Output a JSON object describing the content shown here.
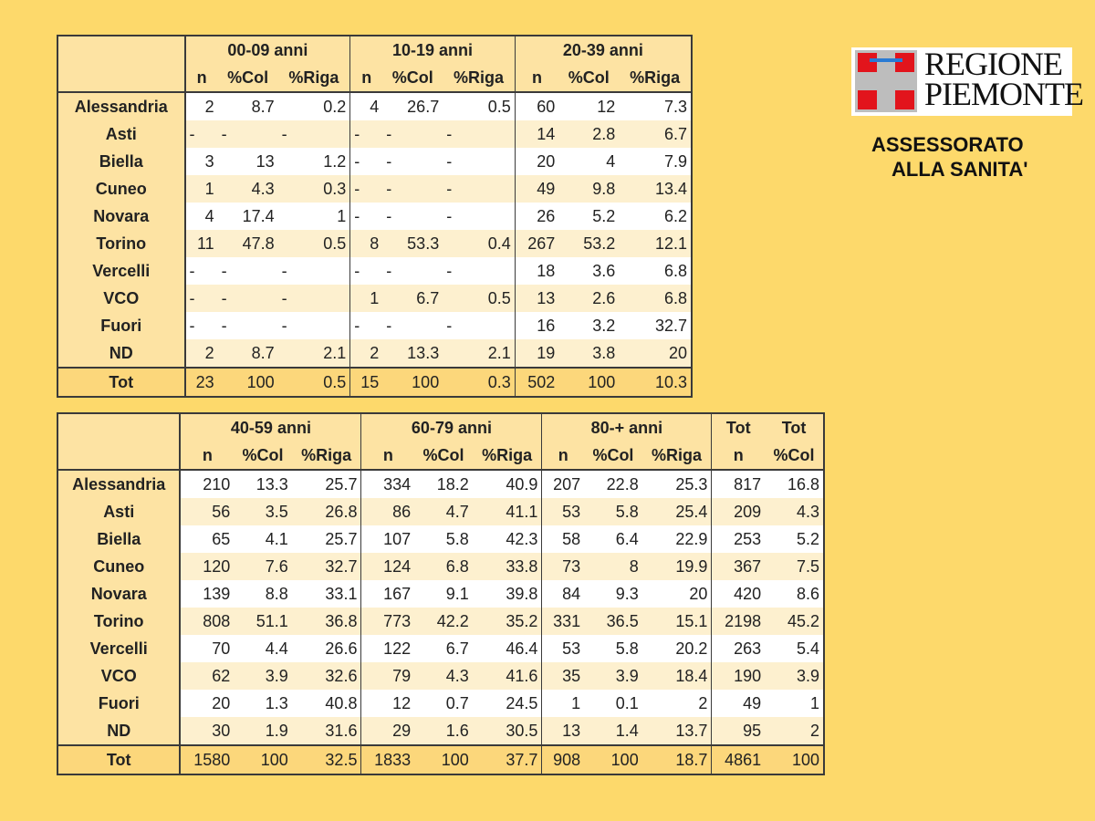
{
  "logo": {
    "line1": "REGIONE",
    "line2": "PIEMONTE"
  },
  "department": {
    "line1": "ASSESSORATO",
    "line2": "ALLA SANITA'"
  },
  "tables": [
    {
      "groups": [
        {
          "labels": [
            "00-09 anni"
          ],
          "cols": [
            "n",
            "%Col",
            "%Riga"
          ]
        },
        {
          "labels": [
            "10-19 anni"
          ],
          "cols": [
            "n",
            "%Col",
            "%Riga"
          ]
        },
        {
          "labels": [
            "20-39 anni"
          ],
          "cols": [
            "n",
            "%Col",
            "%Riga"
          ]
        }
      ],
      "rows": [
        {
          "label": "Alessandria",
          "cells": [
            "2",
            "8.7",
            "0.2",
            "4",
            "26.7",
            "0.5",
            "60",
            "12",
            "7.3"
          ]
        },
        {
          "label": "Asti",
          "cells": [
            "-",
            "-",
            "-",
            "-",
            "-",
            "-",
            "14",
            "2.8",
            "6.7"
          ]
        },
        {
          "label": "Biella",
          "cells": [
            "3",
            "13",
            "1.2",
            "-",
            "-",
            "-",
            "20",
            "4",
            "7.9"
          ]
        },
        {
          "label": "Cuneo",
          "cells": [
            "1",
            "4.3",
            "0.3",
            "-",
            "-",
            "-",
            "49",
            "9.8",
            "13.4"
          ]
        },
        {
          "label": "Novara",
          "cells": [
            "4",
            "17.4",
            "1",
            "-",
            "-",
            "-",
            "26",
            "5.2",
            "6.2"
          ]
        },
        {
          "label": "Torino",
          "cells": [
            "11",
            "47.8",
            "0.5",
            "8",
            "53.3",
            "0.4",
            "267",
            "53.2",
            "12.1"
          ]
        },
        {
          "label": "Vercelli",
          "cells": [
            "-",
            "-",
            "-",
            "-",
            "-",
            "-",
            "18",
            "3.6",
            "6.8"
          ]
        },
        {
          "label": "VCO",
          "cells": [
            "-",
            "-",
            "-",
            "1",
            "6.7",
            "0.5",
            "13",
            "2.6",
            "6.8"
          ]
        },
        {
          "label": "Fuori",
          "cells": [
            "-",
            "-",
            "-",
            "-",
            "-",
            "-",
            "16",
            "3.2",
            "32.7"
          ]
        },
        {
          "label": "ND",
          "cells": [
            "2",
            "8.7",
            "2.1",
            "2",
            "13.3",
            "2.1",
            "19",
            "3.8",
            "20"
          ]
        }
      ],
      "total": {
        "label": "Tot",
        "cells": [
          "23",
          "100",
          "0.5",
          "15",
          "100",
          "0.3",
          "502",
          "100",
          "10.3"
        ]
      }
    },
    {
      "groups": [
        {
          "labels": [
            "40-59 anni"
          ],
          "cols": [
            "n",
            "%Col",
            "%Riga"
          ]
        },
        {
          "labels": [
            "60-79 anni"
          ],
          "cols": [
            "n",
            "%Col",
            "%Riga"
          ]
        },
        {
          "labels": [
            "80-+ anni"
          ],
          "cols": [
            "n",
            "%Col",
            "%Riga"
          ]
        },
        {
          "labels": [
            "Tot",
            "Tot"
          ],
          "cols": [
            "n",
            "%Col"
          ]
        }
      ],
      "rows": [
        {
          "label": "Alessandria",
          "cells": [
            "210",
            "13.3",
            "25.7",
            "334",
            "18.2",
            "40.9",
            "207",
            "22.8",
            "25.3",
            "817",
            "16.8"
          ]
        },
        {
          "label": "Asti",
          "cells": [
            "56",
            "3.5",
            "26.8",
            "86",
            "4.7",
            "41.1",
            "53",
            "5.8",
            "25.4",
            "209",
            "4.3"
          ]
        },
        {
          "label": "Biella",
          "cells": [
            "65",
            "4.1",
            "25.7",
            "107",
            "5.8",
            "42.3",
            "58",
            "6.4",
            "22.9",
            "253",
            "5.2"
          ]
        },
        {
          "label": "Cuneo",
          "cells": [
            "120",
            "7.6",
            "32.7",
            "124",
            "6.8",
            "33.8",
            "73",
            "8",
            "19.9",
            "367",
            "7.5"
          ]
        },
        {
          "label": "Novara",
          "cells": [
            "139",
            "8.8",
            "33.1",
            "167",
            "9.1",
            "39.8",
            "84",
            "9.3",
            "20",
            "420",
            "8.6"
          ]
        },
        {
          "label": "Torino",
          "cells": [
            "808",
            "51.1",
            "36.8",
            "773",
            "42.2",
            "35.2",
            "331",
            "36.5",
            "15.1",
            "2198",
            "45.2"
          ]
        },
        {
          "label": "Vercelli",
          "cells": [
            "70",
            "4.4",
            "26.6",
            "122",
            "6.7",
            "46.4",
            "53",
            "5.8",
            "20.2",
            "263",
            "5.4"
          ]
        },
        {
          "label": "VCO",
          "cells": [
            "62",
            "3.9",
            "32.6",
            "79",
            "4.3",
            "41.6",
            "35",
            "3.9",
            "18.4",
            "190",
            "3.9"
          ]
        },
        {
          "label": "Fuori",
          "cells": [
            "20",
            "1.3",
            "40.8",
            "12",
            "0.7",
            "24.5",
            "1",
            "0.1",
            "2",
            "49",
            "1"
          ]
        },
        {
          "label": "ND",
          "cells": [
            "30",
            "1.9",
            "31.6",
            "29",
            "1.6",
            "30.5",
            "13",
            "1.4",
            "13.7",
            "95",
            "2"
          ]
        }
      ],
      "total": {
        "label": "Tot",
        "cells": [
          "1580",
          "100",
          "32.5",
          "1833",
          "100",
          "37.7",
          "908",
          "100",
          "18.7",
          "4861",
          "100"
        ]
      }
    }
  ]
}
